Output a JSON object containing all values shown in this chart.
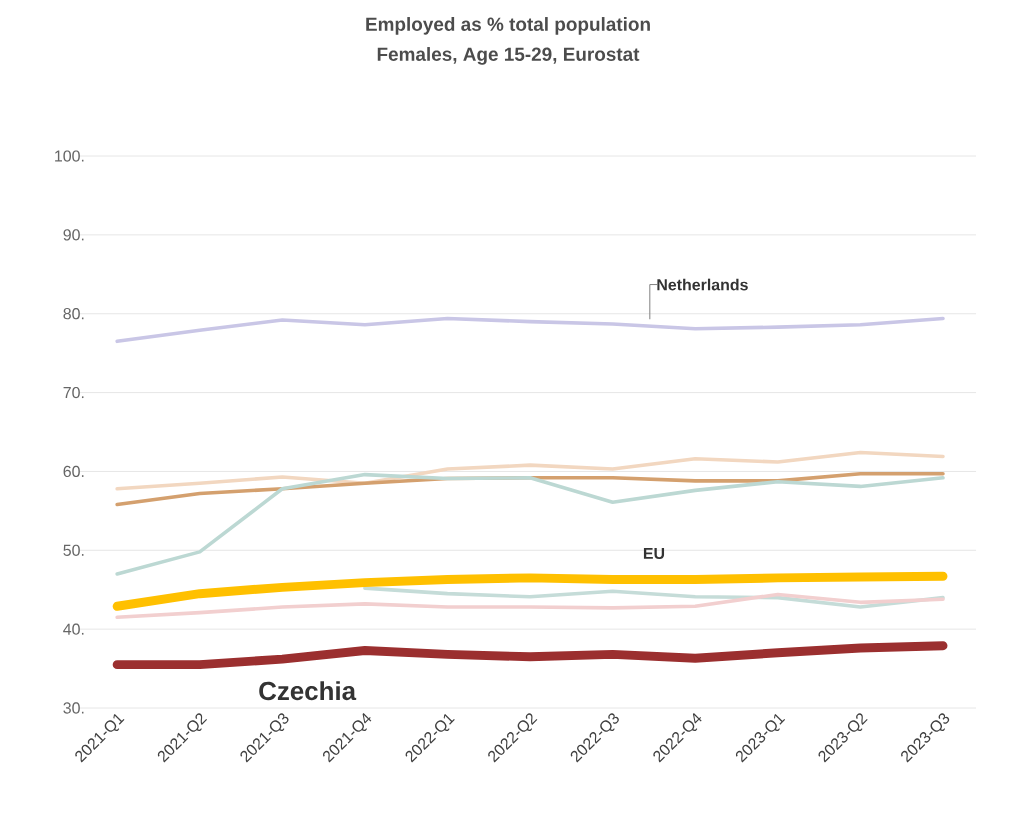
{
  "chart_data": {
    "type": "line",
    "title": "Employed as % total population",
    "subtitle": "Females, Age 15-29, Eurostat",
    "categories": [
      "2021-Q1",
      "2021-Q2",
      "2021-Q3",
      "2021-Q4",
      "2022-Q1",
      "2022-Q2",
      "2022-Q3",
      "2022-Q4",
      "2023-Q1",
      "2023-Q2",
      "2023-Q3"
    ],
    "series": [
      {
        "name": "Netherlands",
        "color": "#c9c6e6",
        "values": [
          76.5,
          77.9,
          79.2,
          78.6,
          79.4,
          79.0,
          78.7,
          78.1,
          78.3,
          78.6,
          79.4
        ]
      },
      {
        "color": "#f2d7c0",
        "values": [
          57.8,
          58.5,
          59.3,
          58.5,
          60.3,
          60.8,
          60.3,
          61.6,
          61.2,
          62.4,
          61.9
        ]
      },
      {
        "color": "#d4a06e",
        "values": [
          55.8,
          57.2,
          57.8,
          58.5,
          59.1,
          59.2,
          59.2,
          58.8,
          58.8,
          59.7,
          59.7
        ]
      },
      {
        "color": "#bcd8d3",
        "values": [
          47.0,
          49.8,
          57.8,
          59.6,
          59.1,
          59.2,
          56.1,
          57.6,
          58.7,
          58.1,
          59.2
        ]
      },
      {
        "color": "#c5dcd8",
        "values": [
          null,
          null,
          null,
          45.2,
          44.5,
          44.1,
          44.8,
          44.1,
          44.0,
          42.8,
          44.0
        ]
      },
      {
        "color": "#f2cfcf",
        "values": [
          41.5,
          42.1,
          42.8,
          43.2,
          42.8,
          42.8,
          42.7,
          42.9,
          44.4,
          43.4,
          43.8
        ]
      },
      {
        "name": "EU",
        "color": "#ffc000",
        "values": [
          42.9,
          44.5,
          45.3,
          45.9,
          46.3,
          46.5,
          46.3,
          46.3,
          46.5,
          46.6,
          46.7
        ]
      },
      {
        "name": "Czechia",
        "color": "#9b2f2f",
        "values": [
          35.5,
          35.5,
          36.2,
          37.3,
          36.8,
          36.5,
          36.8,
          36.3,
          37.0,
          37.6,
          37.9
        ]
      }
    ],
    "ylim": [
      30,
      100
    ],
    "yticks": [
      {
        "value": 30,
        "label": "30."
      },
      {
        "value": 40,
        "label": "40."
      },
      {
        "value": 50,
        "label": "50."
      },
      {
        "value": 60,
        "label": "60."
      },
      {
        "value": 70,
        "label": "70."
      },
      {
        "value": 80,
        "label": "80."
      },
      {
        "value": 90,
        "label": "90."
      },
      {
        "value": 100,
        "label": "100."
      }
    ],
    "grid": "y",
    "marker": "none",
    "line_style": "solid"
  }
}
